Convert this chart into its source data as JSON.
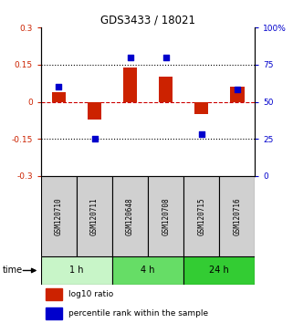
{
  "title": "GDS3433 / 18021",
  "samples": [
    "GSM120710",
    "GSM120711",
    "GSM120648",
    "GSM120708",
    "GSM120715",
    "GSM120716"
  ],
  "log10_ratio": [
    0.04,
    -0.07,
    0.14,
    0.1,
    -0.05,
    0.06
  ],
  "percentile_rank": [
    60,
    25,
    80,
    80,
    28,
    58
  ],
  "time_groups": [
    {
      "label": "1 h",
      "color": "#c8f5c8"
    },
    {
      "label": "4 h",
      "color": "#66dd66"
    },
    {
      "label": "24 h",
      "color": "#33cc33"
    }
  ],
  "ylim": [
    -0.3,
    0.3
  ],
  "yticks_left": [
    -0.3,
    -0.15,
    0.0,
    0.15,
    0.3
  ],
  "yticks_right": [
    0,
    25,
    50,
    75,
    100
  ],
  "bar_color_red": "#cc2200",
  "dot_color_blue": "#0000cc",
  "bar_width": 0.4,
  "dot_size": 25,
  "zero_line_color": "#cc0000",
  "label_log10": "log10 ratio",
  "label_pct": "percentile rank within the sample",
  "left_color": "#cc2200",
  "right_color": "#0000cc"
}
